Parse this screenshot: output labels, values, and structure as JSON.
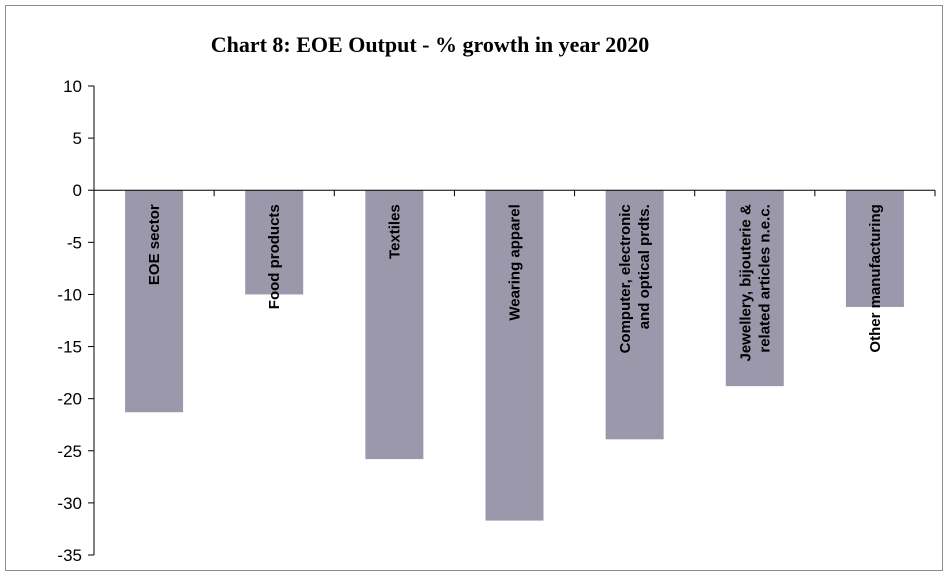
{
  "chart_data": {
    "type": "bar",
    "title": "Chart 8: EOE Output - % growth in year 2020",
    "xlabel": "",
    "ylabel": "",
    "ylim": [
      -35,
      10
    ],
    "yticks": [
      10,
      5,
      0,
      -5,
      -10,
      -15,
      -20,
      -25,
      -30,
      -35
    ],
    "grid": false,
    "legend": "none",
    "categories": [
      [
        "EOE sector"
      ],
      [
        "Food products"
      ],
      [
        "Textiles"
      ],
      [
        "Wearing apparel"
      ],
      [
        "Computer, electronic",
        "and optical prdts."
      ],
      [
        "Jewellery, bijouterie &",
        "related articles n.e.c."
      ],
      [
        "Other manufacturing"
      ]
    ],
    "values": [
      -21.3,
      -10.0,
      -25.8,
      -31.7,
      -23.9,
      -18.8,
      -11.2
    ],
    "bar_color": "#9b98ab"
  }
}
